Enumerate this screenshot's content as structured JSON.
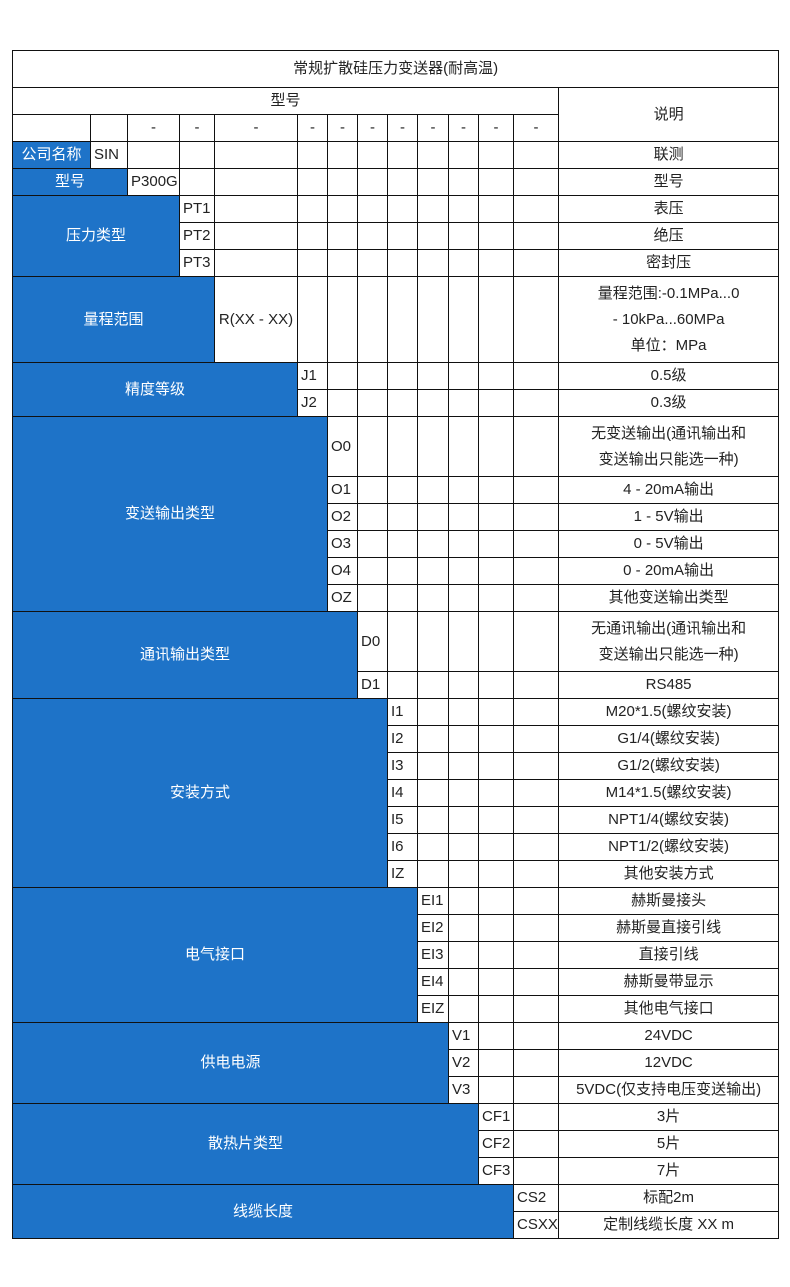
{
  "title": "常规扩散硅压力变送器(耐高温)",
  "header": {
    "model_label": "型号",
    "desc_label": "说明",
    "dashes": [
      "",
      "",
      "-",
      "-",
      "-",
      "-",
      "-",
      "-",
      "-",
      "-",
      "-",
      "-",
      "-"
    ]
  },
  "colors": {
    "category_fill": "#1e73c8",
    "border": "#111111"
  },
  "groups": [
    {
      "label": "公司名称",
      "codes": [
        {
          "code": "SIN",
          "desc": [
            "联测"
          ]
        }
      ]
    },
    {
      "label": "型号",
      "codes": [
        {
          "code": "P300G",
          "desc": [
            "型号"
          ]
        }
      ]
    },
    {
      "label": "压力类型",
      "codes": [
        {
          "code": "PT1",
          "desc": [
            "表压"
          ]
        },
        {
          "code": "PT2",
          "desc": [
            "绝压"
          ]
        },
        {
          "code": "PT3",
          "desc": [
            "密封压"
          ]
        }
      ]
    },
    {
      "label": "量程范围",
      "codes": [
        {
          "code": "R(XX - XX)",
          "desc": [
            "量程范围:-0.1MPa...0",
            "- 10kPa...60MPa",
            "单位：MPa"
          ]
        }
      ]
    },
    {
      "label": "精度等级",
      "codes": [
        {
          "code": "J1",
          "desc": [
            "0.5级"
          ]
        },
        {
          "code": "J2",
          "desc": [
            "0.3级"
          ]
        }
      ]
    },
    {
      "label": "变送输出类型",
      "codes": [
        {
          "code": "O0",
          "desc": [
            "无变送输出(通讯输出和",
            "变送输出只能选一种)"
          ]
        },
        {
          "code": "O1",
          "desc": [
            "4 - 20mA输出"
          ]
        },
        {
          "code": "O2",
          "desc": [
            "1 - 5V输出"
          ]
        },
        {
          "code": "O3",
          "desc": [
            "0 - 5V输出"
          ]
        },
        {
          "code": "O4",
          "desc": [
            "0 - 20mA输出"
          ]
        },
        {
          "code": "OZ",
          "desc": [
            "其他变送输出类型"
          ]
        }
      ]
    },
    {
      "label": "通讯输出类型",
      "codes": [
        {
          "code": "D0",
          "desc": [
            "无通讯输出(通讯输出和",
            "变送输出只能选一种)"
          ]
        },
        {
          "code": "D1",
          "desc": [
            "RS485"
          ]
        }
      ]
    },
    {
      "label": "安装方式",
      "codes": [
        {
          "code": "I1",
          "desc": [
            "M20*1.5(螺纹安装)"
          ]
        },
        {
          "code": "I2",
          "desc": [
            "G1/4(螺纹安装)"
          ]
        },
        {
          "code": "I3",
          "desc": [
            "G1/2(螺纹安装)"
          ]
        },
        {
          "code": "I4",
          "desc": [
            "M14*1.5(螺纹安装)"
          ]
        },
        {
          "code": "I5",
          "desc": [
            "NPT1/4(螺纹安装)"
          ]
        },
        {
          "code": "I6",
          "desc": [
            "NPT1/2(螺纹安装)"
          ]
        },
        {
          "code": "IZ",
          "desc": [
            "其他安装方式"
          ]
        }
      ]
    },
    {
      "label": "电气接口",
      "codes": [
        {
          "code": "EI1",
          "desc": [
            "赫斯曼接头"
          ]
        },
        {
          "code": "EI2",
          "desc": [
            "赫斯曼直接引线"
          ]
        },
        {
          "code": "EI3",
          "desc": [
            "直接引线"
          ]
        },
        {
          "code": "EI4",
          "desc": [
            "赫斯曼带显示"
          ]
        },
        {
          "code": "EIZ",
          "desc": [
            "其他电气接口"
          ]
        }
      ]
    },
    {
      "label": "供电电源",
      "codes": [
        {
          "code": "V1",
          "desc": [
            "24VDC"
          ]
        },
        {
          "code": "V2",
          "desc": [
            "12VDC"
          ]
        },
        {
          "code": "V3",
          "desc": [
            "5VDC(仅支持电压变送输出)"
          ]
        }
      ]
    },
    {
      "label": "散热片类型",
      "codes": [
        {
          "code": "CF1",
          "desc": [
            "3片"
          ]
        },
        {
          "code": "CF2",
          "desc": [
            "5片"
          ]
        },
        {
          "code": "CF3",
          "desc": [
            "7片"
          ]
        }
      ]
    },
    {
      "label": "线缆长度",
      "codes": [
        {
          "code": "CS2",
          "desc": [
            "标配2m"
          ]
        },
        {
          "code": "CSXX",
          "desc": [
            "定制线缆长度 XX m"
          ]
        }
      ]
    }
  ]
}
